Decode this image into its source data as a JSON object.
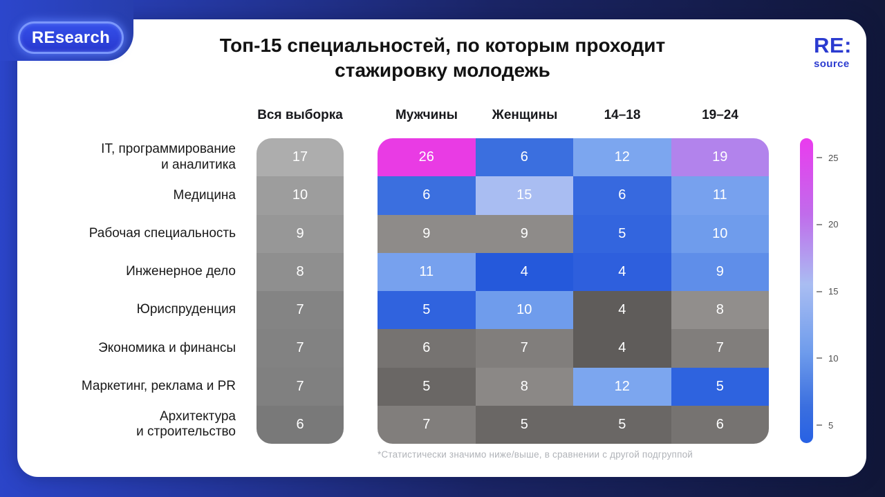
{
  "badge_label": "REsearch",
  "brand": {
    "line1": "RE:",
    "line2": "source"
  },
  "title": "Топ-15 специальностей, по которым проходит стажировку молодежь",
  "footnote": "*Статистически значимо ниже/выше, в сравнении с другой подгруппой",
  "accent_colors": {
    "background_blue": "#2c46cc",
    "background_navy": "#111738",
    "brand_blue": "#2b3bd0",
    "significant_high_magenta": "#e93be4",
    "significant_low_blue": "#2e5fdd",
    "neutral_gray": "#8e8b89"
  },
  "chart_data": {
    "type": "heatmap",
    "title": "Топ-15 специальностей, по которым проходит стажировку молодежь",
    "columns": [
      "Вся выборка",
      "Мужчины",
      "Женщины",
      "14–18",
      "19–24"
    ],
    "rows": [
      {
        "label": "IT, программирование\nи аналитика",
        "values": [
          17,
          26,
          6,
          12,
          19
        ],
        "colors": [
          "#adadad",
          "#e93be4",
          "#3b6fdf",
          "#7ca6ef",
          "#b283ec"
        ],
        "significant": [
          true,
          true,
          true,
          true
        ]
      },
      {
        "label": "Медицина",
        "values": [
          10,
          6,
          15,
          6,
          11
        ],
        "colors": [
          "#9d9d9d",
          "#3b6fdf",
          "#a9bdf2",
          "#3769df",
          "#77a1ee"
        ],
        "significant": [
          true,
          true,
          true,
          true
        ]
      },
      {
        "label": "Рабочая специальность",
        "values": [
          9,
          9,
          9,
          5,
          10
        ],
        "colors": [
          "#979797",
          "#8e8b89",
          "#8e8b89",
          "#3365de",
          "#6f9cec"
        ],
        "significant": [
          false,
          false,
          true,
          true
        ]
      },
      {
        "label": "Инженерное дело",
        "values": [
          8,
          11,
          4,
          4,
          9
        ],
        "colors": [
          "#8f8f8f",
          "#77a1ee",
          "#2559db",
          "#2e5fdd",
          "#5f8ee9"
        ],
        "significant": [
          true,
          true,
          true,
          true
        ]
      },
      {
        "label": "Юриспруденция",
        "values": [
          7,
          5,
          10,
          4,
          8
        ],
        "colors": [
          "#848484",
          "#3063de",
          "#6f9cec",
          "#5f5c5a",
          "#918e8c"
        ],
        "significant": [
          true,
          true,
          false,
          false
        ]
      },
      {
        "label": "Экономика и финансы",
        "values": [
          7,
          6,
          7,
          4,
          7
        ],
        "colors": [
          "#828282",
          "#767371",
          "#817e7c",
          "#5f5c5a",
          "#817e7c"
        ],
        "significant": [
          false,
          false,
          false,
          false
        ]
      },
      {
        "label": "Маркетинг, реклама и PR",
        "values": [
          7,
          5,
          8,
          12,
          5
        ],
        "colors": [
          "#808080",
          "#6a6765",
          "#8b8886",
          "#7ca6ef",
          "#2e63df"
        ],
        "significant": [
          false,
          false,
          true,
          true
        ]
      },
      {
        "label": "Архитектура\nи строительство",
        "values": [
          6,
          7,
          5,
          5,
          6
        ],
        "colors": [
          "#797979",
          "#817e7c",
          "#6a6765",
          "#6a6765",
          "#767371"
        ],
        "significant": [
          false,
          false,
          false,
          false
        ]
      }
    ],
    "legend": {
      "min": 5,
      "max": 25,
      "ticks": [
        25,
        20,
        15,
        10,
        5
      ],
      "gradient": [
        "#ea3bee 0%",
        "#c06ceb 25%",
        "#a9bdf2 48%",
        "#6f9cec 70%",
        "#3b6fdf 88%",
        "#2761e4 100%"
      ]
    },
    "layout": {
      "legend_position": "right",
      "grid": "off"
    }
  }
}
